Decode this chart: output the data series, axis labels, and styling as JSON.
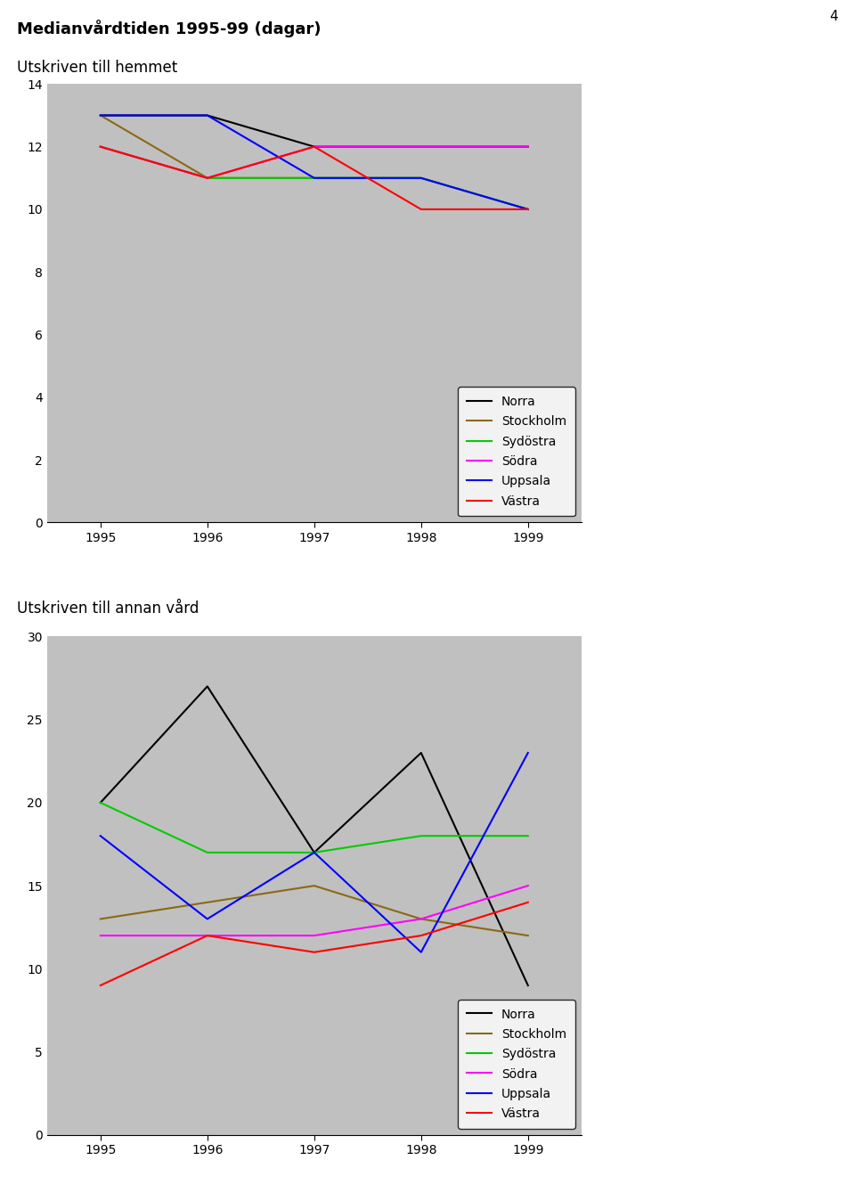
{
  "title": "Medianvårdtiden 1995-99 (dagar)",
  "page_number": "4",
  "chart1_subtitle": "Utskriven till hemmet",
  "chart2_subtitle": "Utskriven till annan vård",
  "years": [
    1995,
    1996,
    1997,
    1998,
    1999
  ],
  "chart1": {
    "Norra": [
      13,
      13,
      12,
      12,
      12
    ],
    "Stockholm": [
      13,
      11,
      11,
      11,
      10
    ],
    "Sydöstra": [
      12,
      11,
      11,
      11,
      10
    ],
    "Södra": [
      12,
      11,
      12,
      12,
      12
    ],
    "Uppsala": [
      13,
      13,
      11,
      11,
      10
    ],
    "Västra": [
      12,
      11,
      12,
      10,
      10
    ]
  },
  "chart2": {
    "Norra": [
      20,
      27,
      17,
      23,
      9
    ],
    "Stockholm": [
      13,
      14,
      15,
      13,
      12
    ],
    "Sydöstra": [
      20,
      17,
      17,
      18,
      18
    ],
    "Södra": [
      12,
      12,
      12,
      13,
      15
    ],
    "Uppsala": [
      18,
      13,
      17,
      11,
      23
    ],
    "Västra": [
      9,
      12,
      11,
      12,
      14
    ]
  },
  "colors": {
    "Norra": "#000000",
    "Stockholm": "#8B6914",
    "Sydöstra": "#00CC00",
    "Södra": "#FF00FF",
    "Uppsala": "#0000FF",
    "Västra": "#FF0000"
  },
  "chart1_ylim": [
    0,
    14
  ],
  "chart1_yticks": [
    0,
    2,
    4,
    6,
    8,
    10,
    12,
    14
  ],
  "chart2_ylim": [
    0,
    30
  ],
  "chart2_yticks": [
    0,
    5,
    10,
    15,
    20,
    25,
    30
  ],
  "bg_color": "#C0C0C0",
  "legend_bg": "#FFFFFF",
  "line_width": 1.5
}
